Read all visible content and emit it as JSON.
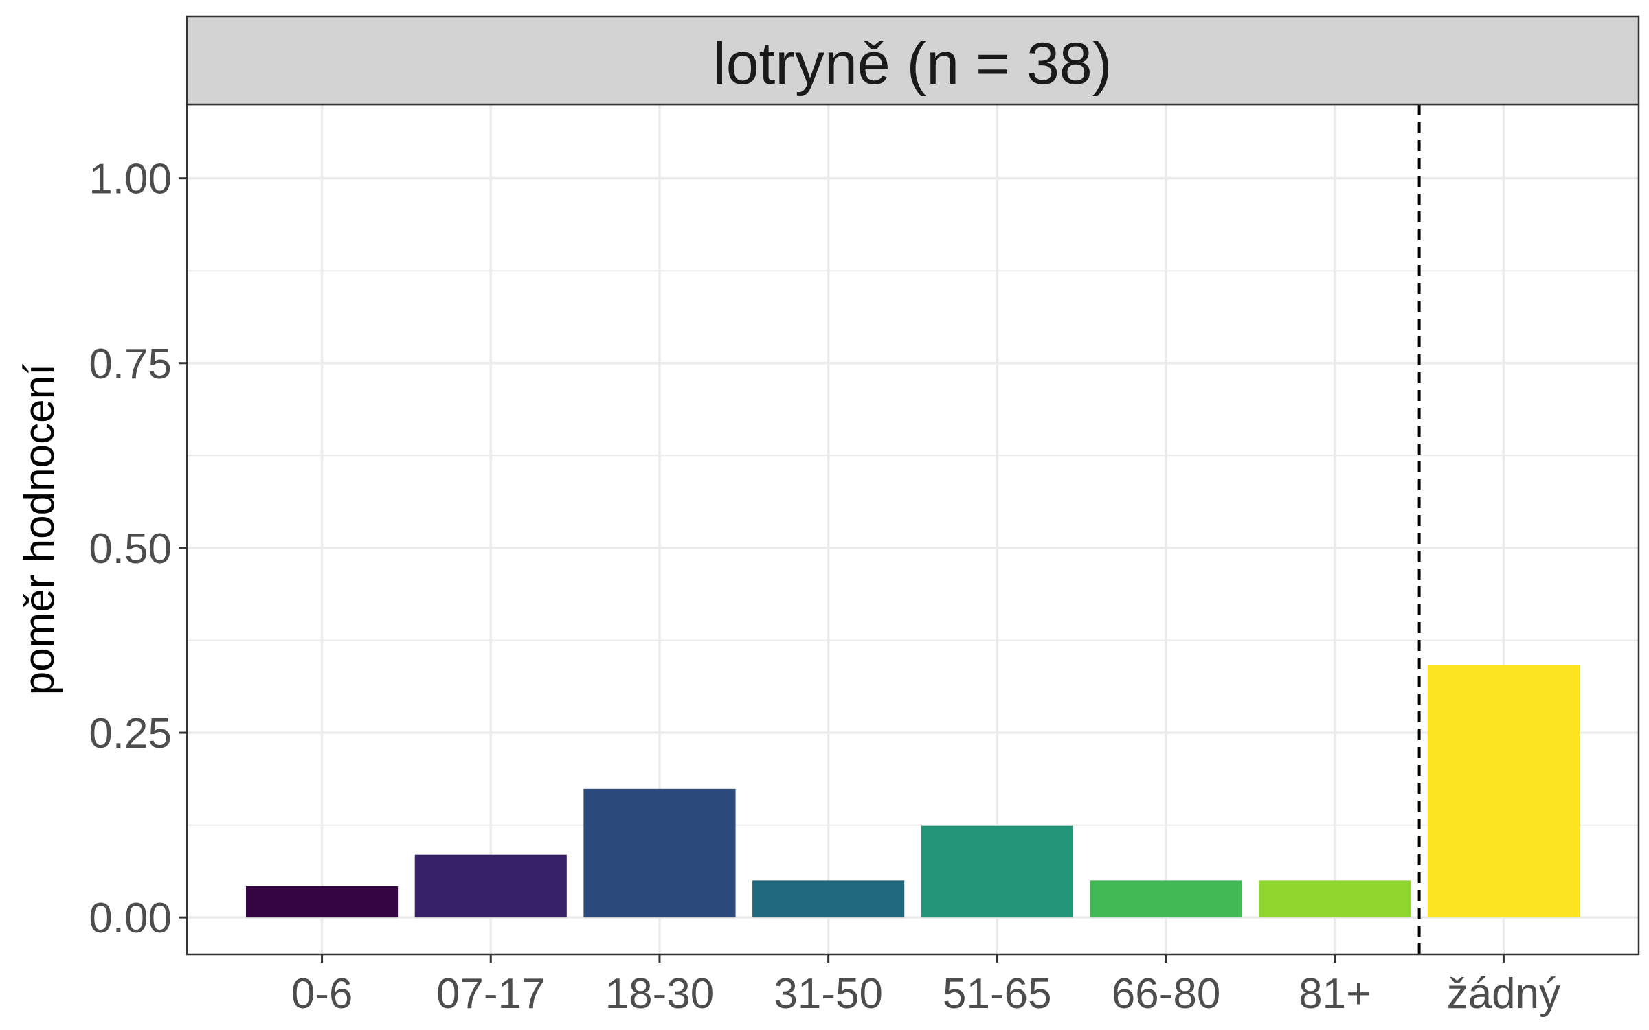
{
  "chart_data": {
    "type": "bar",
    "facet_title": "lotryně (n = 38)",
    "ylabel": "poměr hodnocení",
    "xlabel": "",
    "categories": [
      "0-6",
      "07-17",
      "18-30",
      "31-50",
      "51-65",
      "66-80",
      "81+",
      "žádný"
    ],
    "values": [
      0.042,
      0.085,
      0.174,
      0.05,
      0.124,
      0.05,
      0.05,
      0.342
    ],
    "colors": [
      "#350543",
      "#392168",
      "#2b4a79",
      "#20697c",
      "#22947a",
      "#43b857",
      "#90d530",
      "#fbe31f"
    ],
    "ylim": [
      -0.05,
      1.1
    ],
    "yticks": [
      0,
      0.25,
      0.5,
      0.75,
      1
    ],
    "ytick_labels": [
      "0.00",
      "0.25",
      "0.50",
      "0.75",
      "1.00"
    ],
    "grid": true,
    "reference_line": {
      "between": [
        "81+",
        "žádný"
      ],
      "style": "dashed",
      "color": "#000000"
    }
  }
}
